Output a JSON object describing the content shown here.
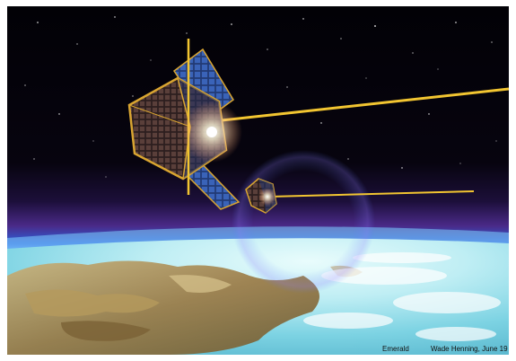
{
  "illustration": {
    "caption_title": "Emerald",
    "caption_credit": "Wade Henning, June 19",
    "subject": "satellites-over-earth",
    "colors": {
      "space": "#05030a",
      "atmosphere_glow": "#3f8cff",
      "purple_haze": "#5a2a8a",
      "ocean": "#d6f5f7",
      "land": "#a88a55",
      "tether": "#f2c531",
      "solar_panel": "#2e4f9a",
      "frame_gold": "#d9a531"
    }
  }
}
